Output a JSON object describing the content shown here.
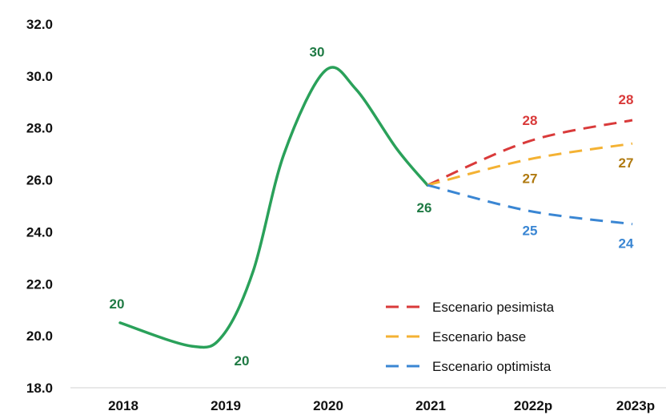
{
  "chart_data": {
    "type": "line",
    "categories": [
      "2018",
      "2019",
      "2020",
      "2021",
      "2022p",
      "2023p"
    ],
    "y_ticks": [
      "18.0",
      "20.0",
      "22.0",
      "24.0",
      "26.0",
      "28.0",
      "30.0",
      "32.0"
    ],
    "ylim": [
      18,
      32
    ],
    "grid": false,
    "legend_position": "bottom-right",
    "historical": {
      "color": "#2aa15a",
      "points": [
        {
          "x": 0,
          "y": 20.5
        },
        {
          "x": 0.7,
          "y": 19.6
        },
        {
          "x": 1.0,
          "y": 20.0
        },
        {
          "x": 1.3,
          "y": 22.5
        },
        {
          "x": 1.6,
          "y": 27.0
        },
        {
          "x": 2.0,
          "y": 30.2
        },
        {
          "x": 2.3,
          "y": 29.5
        },
        {
          "x": 2.7,
          "y": 27.2
        },
        {
          "x": 3.0,
          "y": 25.8
        }
      ],
      "labels": [
        {
          "text": "20",
          "x": 0,
          "y": 20.5
        },
        {
          "text": "20",
          "x": 1.0,
          "y": 19.6
        },
        {
          "text": "30",
          "x": 2.0,
          "y": 30.2
        },
        {
          "text": "26",
          "x": 3.0,
          "y": 25.8
        }
      ]
    },
    "series": [
      {
        "name": "Escenario pesimista",
        "color": "#d93a3a",
        "x": [
          3,
          4,
          5
        ],
        "values": [
          25.8,
          27.5,
          28.3
        ],
        "labels": [
          "",
          "28",
          "28"
        ],
        "label_side": "above"
      },
      {
        "name": "Escenario base",
        "color": "#f4b233",
        "x": [
          3,
          4,
          5
        ],
        "values": [
          25.8,
          26.8,
          27.4
        ],
        "labels": [
          "",
          "27",
          "27"
        ],
        "label_side": "below"
      },
      {
        "name": "Escenario optimista",
        "color": "#3a86d3",
        "x": [
          3,
          4,
          5
        ],
        "values": [
          25.8,
          24.8,
          24.3
        ],
        "labels": [
          "",
          "25",
          "24"
        ],
        "label_side": "below"
      }
    ]
  }
}
